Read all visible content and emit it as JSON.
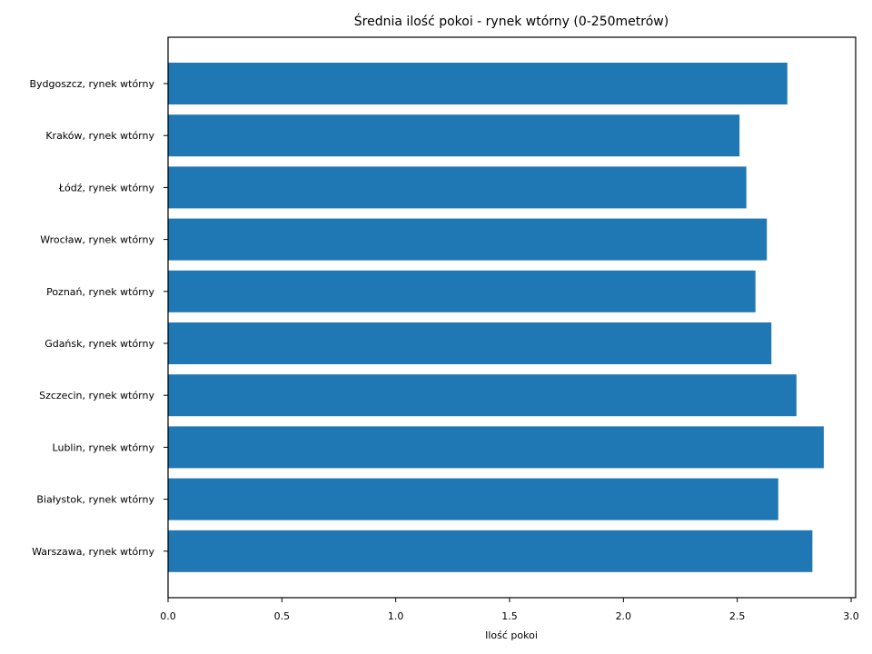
{
  "chart_data": {
    "type": "bar",
    "orientation": "horizontal",
    "title": "Średnia ilość pokoi - rynek wtórny (0-250metrów)",
    "xlabel": "Ilość pokoi",
    "ylabel": "",
    "categories": [
      "Bydgoszcz, rynek wtórny",
      "Kraków, rynek wtórny",
      "Łódź, rynek wtórny",
      "Wrocław, rynek wtórny",
      "Poznań, rynek wtórny",
      "Gdańsk, rynek wtórny",
      "Szczecin, rynek wtórny",
      "Lublin, rynek wtórny",
      "Białystok, rynek wtórny",
      "Warszawa, rynek wtórny"
    ],
    "values": [
      2.72,
      2.51,
      2.54,
      2.63,
      2.58,
      2.65,
      2.76,
      2.88,
      2.68,
      2.83
    ],
    "xlim": [
      0,
      3.02
    ],
    "xticks": [
      0.0,
      0.5,
      1.0,
      1.5,
      2.0,
      2.5,
      3.0
    ],
    "xtick_labels": [
      "0.0",
      "0.5",
      "1.0",
      "1.5",
      "2.0",
      "2.5",
      "3.0"
    ],
    "bar_color": "#1f77b4",
    "grid": false,
    "legend": "none"
  }
}
